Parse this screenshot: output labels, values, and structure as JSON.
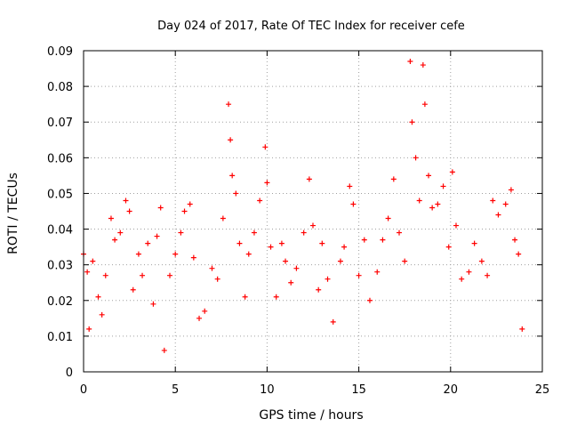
{
  "chart_data": {
    "type": "scatter",
    "title": "Day 024 of 2017, Rate Of TEC Index for receiver cefe",
    "xlabel": "GPS time / hours",
    "ylabel": "ROTI / TECUs",
    "xlim": [
      0,
      25
    ],
    "ylim": [
      0,
      0.09
    ],
    "xticks": [
      0,
      5,
      10,
      15,
      20,
      25
    ],
    "xtick_labels": [
      "0",
      "5",
      "10",
      "15",
      "20",
      "25"
    ],
    "yticks": [
      0,
      0.01,
      0.02,
      0.03,
      0.04,
      0.05,
      0.06,
      0.07,
      0.08,
      0.09
    ],
    "ytick_labels": [
      "0",
      "0.01",
      "0.02",
      "0.03",
      "0.04",
      "0.05",
      "0.06",
      "0.07",
      "0.08",
      "0.09"
    ],
    "grid": true,
    "marker": "+",
    "color": "#ff0000",
    "series": [
      {
        "name": "ROTI",
        "x_range": [
          0.0,
          23.9
        ],
        "points": [
          [
            0.0,
            0.033
          ],
          [
            0.2,
            0.028
          ],
          [
            0.3,
            0.012
          ],
          [
            0.5,
            0.031
          ],
          [
            0.8,
            0.021
          ],
          [
            1.0,
            0.016
          ],
          [
            1.2,
            0.027
          ],
          [
            1.5,
            0.043
          ],
          [
            1.7,
            0.037
          ],
          [
            2.0,
            0.039
          ],
          [
            2.3,
            0.048
          ],
          [
            2.5,
            0.045
          ],
          [
            2.7,
            0.023
          ],
          [
            3.0,
            0.033
          ],
          [
            3.2,
            0.027
          ],
          [
            3.5,
            0.036
          ],
          [
            3.8,
            0.019
          ],
          [
            4.0,
            0.038
          ],
          [
            4.2,
            0.046
          ],
          [
            4.4,
            0.006
          ],
          [
            4.7,
            0.027
          ],
          [
            5.0,
            0.033
          ],
          [
            5.3,
            0.039
          ],
          [
            5.5,
            0.045
          ],
          [
            5.8,
            0.047
          ],
          [
            6.0,
            0.032
          ],
          [
            6.3,
            0.015
          ],
          [
            6.6,
            0.017
          ],
          [
            7.0,
            0.029
          ],
          [
            7.3,
            0.026
          ],
          [
            7.6,
            0.043
          ],
          [
            7.9,
            0.075
          ],
          [
            8.0,
            0.065
          ],
          [
            8.1,
            0.055
          ],
          [
            8.3,
            0.05
          ],
          [
            8.5,
            0.036
          ],
          [
            8.8,
            0.021
          ],
          [
            9.0,
            0.033
          ],
          [
            9.3,
            0.039
          ],
          [
            9.6,
            0.048
          ],
          [
            9.9,
            0.063
          ],
          [
            10.0,
            0.053
          ],
          [
            10.2,
            0.035
          ],
          [
            10.5,
            0.021
          ],
          [
            10.8,
            0.036
          ],
          [
            11.0,
            0.031
          ],
          [
            11.3,
            0.025
          ],
          [
            11.6,
            0.029
          ],
          [
            12.0,
            0.039
          ],
          [
            12.3,
            0.054
          ],
          [
            12.5,
            0.041
          ],
          [
            12.8,
            0.023
          ],
          [
            13.0,
            0.036
          ],
          [
            13.3,
            0.026
          ],
          [
            13.6,
            0.014
          ],
          [
            14.0,
            0.031
          ],
          [
            14.2,
            0.035
          ],
          [
            14.5,
            0.052
          ],
          [
            14.7,
            0.047
          ],
          [
            15.0,
            0.027
          ],
          [
            15.3,
            0.037
          ],
          [
            15.6,
            0.02
          ],
          [
            16.0,
            0.028
          ],
          [
            16.3,
            0.037
          ],
          [
            16.6,
            0.043
          ],
          [
            16.9,
            0.054
          ],
          [
            17.2,
            0.039
          ],
          [
            17.5,
            0.031
          ],
          [
            17.8,
            0.087
          ],
          [
            17.9,
            0.07
          ],
          [
            18.1,
            0.06
          ],
          [
            18.3,
            0.048
          ],
          [
            18.5,
            0.086
          ],
          [
            18.6,
            0.075
          ],
          [
            18.8,
            0.055
          ],
          [
            19.0,
            0.046
          ],
          [
            19.3,
            0.047
          ],
          [
            19.6,
            0.052
          ],
          [
            19.9,
            0.035
          ],
          [
            20.1,
            0.056
          ],
          [
            20.3,
            0.041
          ],
          [
            20.6,
            0.026
          ],
          [
            21.0,
            0.028
          ],
          [
            21.3,
            0.036
          ],
          [
            21.7,
            0.031
          ],
          [
            22.0,
            0.027
          ],
          [
            22.3,
            0.048
          ],
          [
            22.6,
            0.044
          ],
          [
            23.0,
            0.047
          ],
          [
            23.3,
            0.051
          ],
          [
            23.5,
            0.037
          ],
          [
            23.7,
            0.033
          ],
          [
            23.9,
            0.012
          ]
        ]
      }
    ]
  }
}
